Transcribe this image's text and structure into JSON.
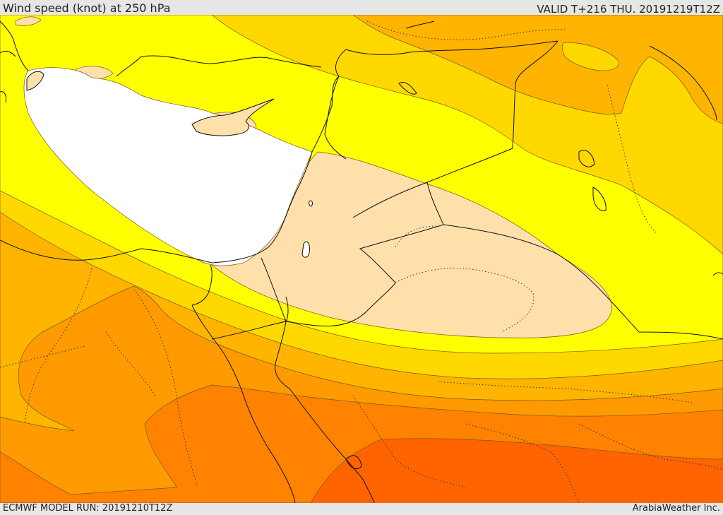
{
  "header": {
    "title": "Wind speed (knot) at 250 hPa",
    "valid": "VALID T+216 THU. 20191219T12Z"
  },
  "footer": {
    "model_run": "ECMWF MODEL RUN: 20191210T12Z",
    "credit": "ArabiaWeather Inc."
  },
  "map": {
    "field": "wind speed 250 hPa",
    "colors": {
      "white": "#ffffff",
      "peach": "#ffe0aa",
      "yellow": "#ffff00",
      "gold": "#ffd800",
      "amber": "#ffb400",
      "orange_light": "#ff9b00",
      "orange": "#ff8200",
      "orange_red": "#ff6400"
    }
  }
}
